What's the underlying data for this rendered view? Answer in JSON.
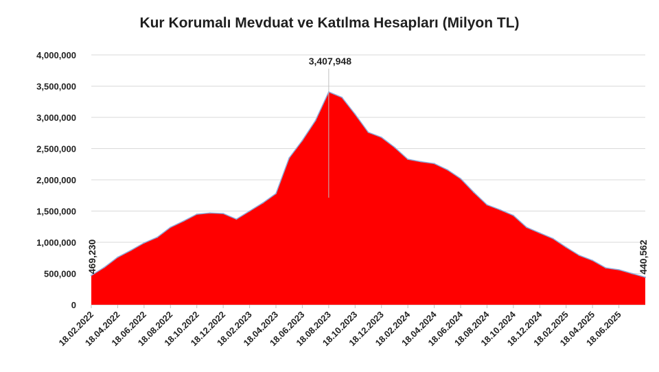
{
  "chart_data": {
    "type": "area",
    "title": "Kur Korumalı Mevduat ve Katılma Hesapları (Milyon TL)",
    "xlabel": "",
    "ylabel": "",
    "ylim": [
      0,
      4000000
    ],
    "yticks": [
      "4,000,000",
      "3,500,000",
      "3,000,000",
      "2,500,000",
      "2,000,000",
      "1,500,000",
      "1,000,000",
      "500,000",
      "0"
    ],
    "ytick_values": [
      4000000,
      3500000,
      3000000,
      2500000,
      2000000,
      1500000,
      1000000,
      500000,
      0
    ],
    "xticks": [
      "18.02.2022",
      "18.04.2022",
      "18.06.2022",
      "18.08.2022",
      "18.10.2022",
      "18.12.2022",
      "18.02.2023",
      "18.04.2023",
      "18.06.2023",
      "18.08.2023",
      "18.10.2023",
      "18.12.2023",
      "18.02.2024",
      "18.04.2024",
      "18.06.2024",
      "18.08.2024",
      "18.10.2024",
      "18.12.2024",
      "18.02.2025",
      "18.04.2025",
      "18.06.2025"
    ],
    "grid": true,
    "fill_color": "#ff0000",
    "line_color": "#8fa8d8",
    "annotations": [
      {
        "label": "469,230",
        "x": "18.02.2022",
        "y": 469230
      },
      {
        "label": "3,407,948",
        "x": "18.08.2023",
        "y": 3407948
      },
      {
        "label": "440,562",
        "x": "08.2025",
        "y": 440562
      }
    ],
    "series": [
      {
        "x": [
          "02.2022",
          "03.2022",
          "04.2022",
          "05.2022",
          "06.2022",
          "07.2022",
          "08.2022",
          "09.2022",
          "10.2022",
          "11.2022",
          "12.2022",
          "01.2023",
          "02.2023",
          "03.2023",
          "04.2023",
          "05.2023",
          "06.2023",
          "07.2023",
          "08.2023",
          "09.2023",
          "10.2023",
          "11.2023",
          "12.2023",
          "01.2024",
          "02.2024",
          "03.2024",
          "04.2024",
          "05.2024",
          "06.2024",
          "07.2024",
          "08.2024",
          "09.2024",
          "10.2024",
          "11.2024",
          "12.2024",
          "01.2025",
          "02.2025",
          "03.2025",
          "04.2025",
          "05.2025",
          "06.2025",
          "07.2025",
          "08.2025"
        ],
        "values": [
          469230,
          600000,
          760000,
          870000,
          990000,
          1080000,
          1240000,
          1340000,
          1450000,
          1470000,
          1460000,
          1370000,
          1500000,
          1630000,
          1780000,
          2350000,
          2630000,
          2950000,
          3407948,
          3320000,
          3050000,
          2760000,
          2680000,
          2520000,
          2330000,
          2290000,
          2260000,
          2160000,
          2020000,
          1800000,
          1600000,
          1520000,
          1430000,
          1240000,
          1150000,
          1060000,
          920000,
          790000,
          710000,
          590000,
          560000,
          500000,
          440562
        ]
      }
    ]
  }
}
